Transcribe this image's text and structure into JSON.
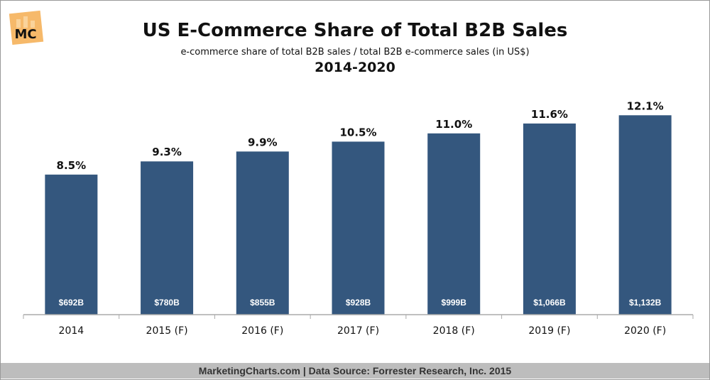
{
  "header": {
    "logo_text": "MC",
    "title": "US E-Commerce Share of Total B2B Sales",
    "subtitle": "e-commerce share of total B2B sales / total B2B e-commerce sales (in US$)",
    "years": "2014-2020"
  },
  "footer": {
    "text": "MarketingCharts.com | Data Source: Forrester Research, Inc. 2015"
  },
  "colors": {
    "bar": "#34577e",
    "logo": "#f6b96a",
    "footer": "#bdbdbd"
  },
  "chart_data": {
    "type": "bar",
    "title": "US E-Commerce Share of Total B2B Sales",
    "categories": [
      "2014",
      "2015 (F)",
      "2016 (F)",
      "2017 (F)",
      "2018 (F)",
      "2019 (F)",
      "2020 (F)"
    ],
    "values": [
      8.5,
      9.3,
      9.9,
      10.5,
      11.0,
      11.6,
      12.1
    ],
    "value_labels": [
      "8.5%",
      "9.3%",
      "9.9%",
      "10.5%",
      "11.0%",
      "11.6%",
      "12.1%"
    ],
    "inner_labels": [
      "$692B",
      "$780B",
      "$855B",
      "$928B",
      "$999B",
      "$1,066B",
      "$1,132B"
    ],
    "ylim": [
      0,
      15
    ],
    "grid": false,
    "xlabel": "",
    "ylabel": ""
  }
}
